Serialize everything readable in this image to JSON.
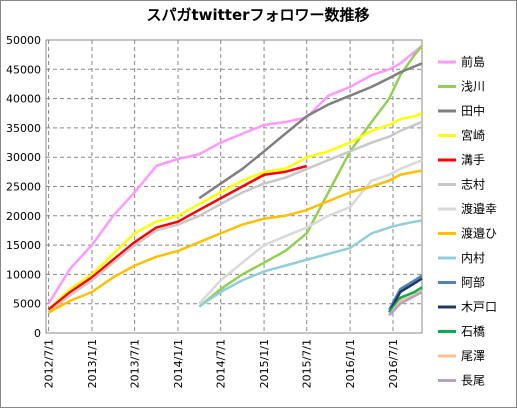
{
  "chart_data": {
    "type": "line",
    "title": "スパガtwitterフォロワー数推移",
    "x": [
      "2012/7/1",
      "2012/10/1",
      "2013/1/1",
      "2013/4/1",
      "2013/7/1",
      "2013/10/1",
      "2014/1/1",
      "2014/4/1",
      "2014/7/1",
      "2014/10/1",
      "2015/1/1",
      "2015/4/1",
      "2015/7/1",
      "2015/10/1",
      "2016/1/1",
      "2016/4/1",
      "2016/6/15",
      "2016/8/1",
      "2016/10/1",
      "2016/11/1"
    ],
    "xlim": [
      "2012/6/20",
      "2016/11/1"
    ],
    "xticks": [
      "2012/7/1",
      "2013/1/1",
      "2013/7/1",
      "2014/1/1",
      "2014/7/1",
      "2015/1/1",
      "2015/7/1",
      "2016/1/1",
      "2016/7/1"
    ],
    "ylim": [
      0,
      50000
    ],
    "yticks": [
      0,
      5000,
      10000,
      15000,
      20000,
      25000,
      30000,
      35000,
      40000,
      45000,
      50000
    ],
    "grid": true,
    "legend": "right",
    "series": [
      {
        "name": "前島",
        "color": "#ff99ff",
        "values": [
          5000,
          11000,
          15000,
          20000,
          24000,
          28500,
          29700,
          30500,
          32500,
          34000,
          35500,
          36000,
          36800,
          40500,
          42000,
          44000,
          45000,
          46000,
          48000,
          49000
        ]
      },
      {
        "name": "浅川",
        "color": "#92d050",
        "values": [
          null,
          null,
          null,
          null,
          null,
          null,
          null,
          4500,
          7500,
          10000,
          12000,
          14000,
          17000,
          24000,
          31000,
          36000,
          40000,
          44000,
          47500,
          49000
        ]
      },
      {
        "name": "田中",
        "color": "#7f7f7f",
        "values": [
          null,
          null,
          null,
          null,
          null,
          null,
          null,
          23000,
          25500,
          28000,
          31000,
          34000,
          37000,
          39000,
          40500,
          42000,
          43500,
          44500,
          45500,
          46000
        ]
      },
      {
        "name": "宮崎",
        "color": "#ffff00",
        "values": [
          4000,
          7500,
          10000,
          13500,
          17000,
          19000,
          20000,
          22000,
          24000,
          26000,
          27500,
          28000,
          30000,
          31000,
          32500,
          34500,
          35500,
          36500,
          37000,
          37500
        ]
      },
      {
        "name": "溝手",
        "color": "#ff0000",
        "values": [
          4000,
          7000,
          9500,
          12500,
          15500,
          18000,
          19000,
          21000,
          23000,
          25000,
          27000,
          27500,
          28500,
          null,
          null,
          null,
          null,
          null,
          null,
          null
        ]
      },
      {
        "name": "志村",
        "color": "#c8c8c8",
        "values": [
          3500,
          6500,
          9000,
          12000,
          15000,
          17500,
          18500,
          20000,
          22000,
          24000,
          25500,
          26500,
          28000,
          29500,
          31000,
          32500,
          33500,
          34500,
          35500,
          36000
        ]
      },
      {
        "name": "渡邉幸",
        "color": "#d9d9d9",
        "values": [
          null,
          null,
          null,
          null,
          null,
          null,
          null,
          5000,
          9000,
          12000,
          15000,
          16500,
          18000,
          20000,
          21500,
          26000,
          27000,
          28000,
          29000,
          29500
        ]
      },
      {
        "name": "渡邉ひ",
        "color": "#ffc000",
        "values": [
          3500,
          5500,
          7000,
          9500,
          11500,
          13000,
          14000,
          15500,
          17000,
          18500,
          19500,
          20000,
          21000,
          22500,
          24000,
          25000,
          26000,
          27000,
          27500,
          27700
        ]
      },
      {
        "name": "内村",
        "color": "#92cddc",
        "values": [
          null,
          null,
          null,
          null,
          null,
          null,
          null,
          4500,
          7000,
          9000,
          10500,
          11500,
          12500,
          13500,
          14500,
          17000,
          18000,
          18500,
          19000,
          19200
        ]
      },
      {
        "name": "阿部",
        "color": "#4f81bd",
        "values": [
          null,
          null,
          null,
          null,
          null,
          null,
          null,
          null,
          null,
          null,
          null,
          null,
          null,
          null,
          null,
          null,
          4000,
          7500,
          9000,
          9800
        ]
      },
      {
        "name": "木戸口",
        "color": "#1f3864",
        "values": [
          null,
          null,
          null,
          null,
          null,
          null,
          null,
          null,
          null,
          null,
          null,
          null,
          null,
          null,
          null,
          null,
          3500,
          7000,
          8500,
          9300
        ]
      },
      {
        "name": "石橋",
        "color": "#00b050",
        "values": [
          null,
          null,
          null,
          null,
          null,
          null,
          null,
          null,
          null,
          null,
          null,
          null,
          null,
          null,
          null,
          null,
          3500,
          6000,
          7000,
          7800
        ]
      },
      {
        "name": "尾澤",
        "color": "#fac090",
        "values": [
          null,
          null,
          null,
          null,
          null,
          null,
          null,
          null,
          null,
          null,
          null,
          null,
          null,
          null,
          null,
          null,
          3000,
          5500,
          6500,
          7200
        ]
      },
      {
        "name": "長尾",
        "color": "#b3a2c7",
        "values": [
          null,
          null,
          null,
          null,
          null,
          null,
          null,
          null,
          null,
          null,
          null,
          null,
          null,
          null,
          null,
          null,
          3000,
          5000,
          6300,
          7000
        ]
      }
    ]
  }
}
